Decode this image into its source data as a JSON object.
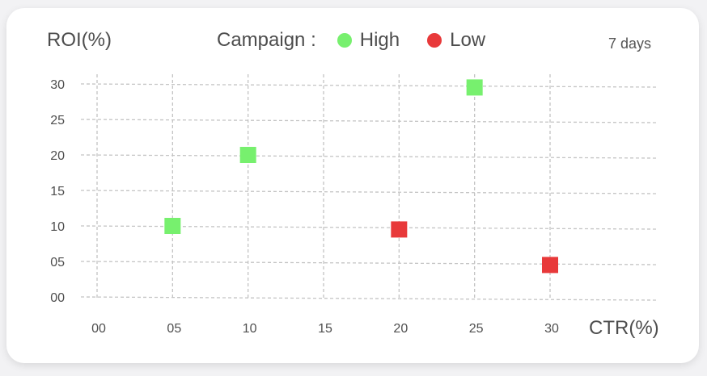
{
  "chart_data": {
    "type": "scatter",
    "title": "",
    "ylabel": "ROI(%)",
    "xlabel": "CTR(%)",
    "legend_title": "Campaign :",
    "period": "7 days",
    "xlim": [
      0,
      30
    ],
    "ylim": [
      0,
      30
    ],
    "grid": true,
    "legend_position": "top",
    "x_ticks": [
      "00",
      "05",
      "10",
      "15",
      "20",
      "25",
      "30"
    ],
    "y_ticks": [
      "00",
      "05",
      "10",
      "15",
      "20",
      "25",
      "30"
    ],
    "series": [
      {
        "name": "High",
        "color": "#77f06e",
        "points": [
          [
            5,
            10
          ],
          [
            10,
            20
          ],
          [
            25,
            29.5
          ]
        ]
      },
      {
        "name": "Low",
        "color": "#e8393a",
        "points": [
          [
            20,
            9.5
          ],
          [
            30,
            4.5
          ]
        ]
      }
    ]
  }
}
